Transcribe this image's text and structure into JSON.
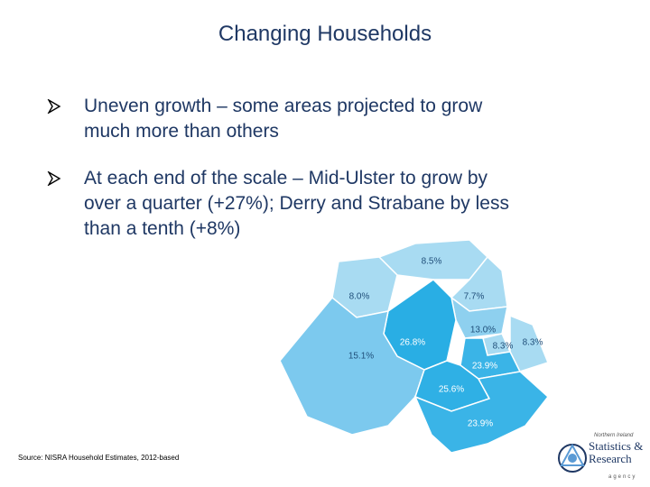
{
  "title": "Changing Households",
  "bullets": [
    {
      "lines": [
        "Uneven growth – some areas projected to grow",
        "much more than others"
      ]
    },
    {
      "lines": [
        "At each end of the scale – Mid-Ulster to grow by",
        "over a quarter (+27%); Derry and Strabane by less",
        "than a tenth (+8%)"
      ]
    }
  ],
  "map": {
    "labels": [
      "8.5%",
      "8.0%",
      "7.7%",
      "13.0%",
      "26.8%",
      "8.3%",
      "8.3%",
      "15.1%",
      "23.9%",
      "25.6%",
      "23.9%"
    ]
  },
  "source": "Source: NISRA  Household Estimates, 2012-based",
  "logo": {
    "top": "Northern Ireland",
    "name": [
      "Statistics &",
      "Research"
    ],
    "bottom": "agency"
  }
}
